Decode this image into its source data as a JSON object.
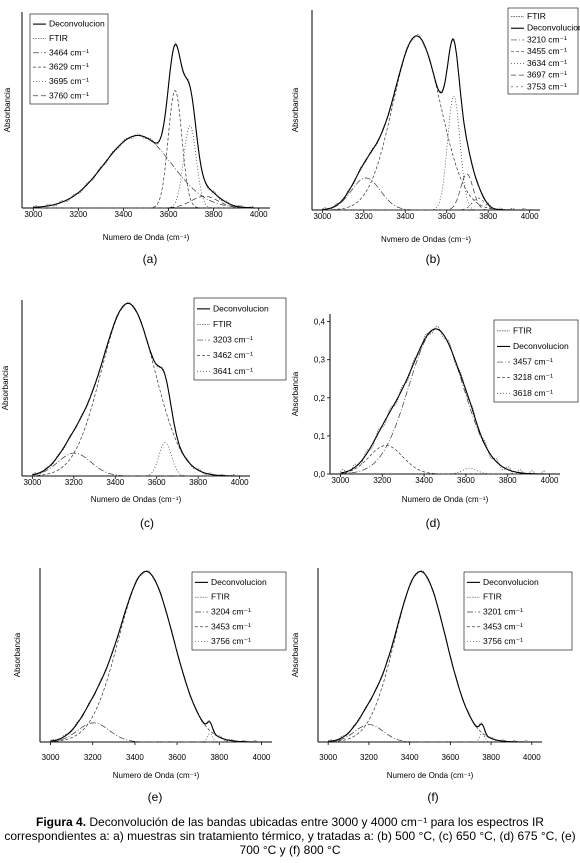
{
  "panels": [
    {
      "id": "a",
      "label": "(a)",
      "xlabel": "Numero de Onda (cm⁻¹)",
      "ylabel": "Absorbancia",
      "xticks": [
        "3000",
        "3200",
        "3400",
        "3600",
        "3800",
        "4000"
      ],
      "yticks": [],
      "legend": [
        "Deconvolucion",
        "FTIR",
        "3464 cm⁻¹",
        "3629 cm⁻¹",
        "3695 cm⁻¹",
        "3760 cm⁻¹"
      ]
    },
    {
      "id": "b",
      "label": "(b)",
      "xlabel": "Nvmero de Ondas (cm⁻¹)",
      "ylabel": "Absorbancia",
      "xticks": [
        "3000",
        "3200",
        "3400",
        "3600",
        "3800",
        "4000"
      ],
      "yticks": [],
      "legend": [
        "FTIR",
        "Deconvolucion",
        "3210 cm⁻¹",
        "3455 cm⁻¹",
        "3634 cm⁻¹",
        "3697 cm⁻¹",
        "3753 cm⁻¹"
      ]
    },
    {
      "id": "c",
      "label": "(c)",
      "xlabel": "Numero de Ondas (cm⁻¹)",
      "ylabel": "Absorbancia",
      "xticks": [
        "3000",
        "3200",
        "3400",
        "3600",
        "3800",
        "4000"
      ],
      "yticks": [],
      "legend": [
        "Deconvolucion",
        "FTIR",
        "3203 cm⁻¹",
        "3462 cm⁻¹",
        "3641 cm⁻¹"
      ]
    },
    {
      "id": "d",
      "label": "(d)",
      "xlabel": "Numero de Onda (cm⁻¹)",
      "ylabel": "Absorbancia",
      "xticks": [
        "3000",
        "3200",
        "3400",
        "3600",
        "3800",
        "4000"
      ],
      "yticks": [
        "0,0",
        "0,1",
        "0,2",
        "0,3",
        "0,4"
      ],
      "legend": [
        "FTIR",
        "Deconvolucion",
        "3457 cm⁻¹",
        "3218 cm⁻¹",
        "3618 cm⁻¹"
      ]
    },
    {
      "id": "e",
      "label": "(e)",
      "xlabel": "Numero de Onda (cm⁻¹)",
      "ylabel": "Absorbancia",
      "xticks": [
        "3000",
        "3200",
        "3400",
        "3600",
        "3800",
        "4000"
      ],
      "yticks": [],
      "legend": [
        "Deconvolucion",
        "FTIR",
        "3204 cm⁻¹",
        "3453 cm⁻¹",
        "3756 cm⁻¹"
      ]
    },
    {
      "id": "f",
      "label": "(f)",
      "xlabel": "Numero de Onda (cm⁻¹)",
      "ylabel": "Absorbancia",
      "xticks": [
        "3000",
        "3200",
        "3400",
        "3600",
        "3800",
        "4000"
      ],
      "yticks": [],
      "legend": [
        "Deconvolucion",
        "FTIR",
        "3201 cm⁻¹",
        "3453 cm⁻¹",
        "3756 cm⁻¹"
      ]
    }
  ],
  "caption": {
    "bold": "Figura 4.",
    "text": " Deconvolución de las bandas ubicadas entre 3000 y 4000 cm⁻¹ para los espectros IR correspondientes a: a) muestras sin tratamiento térmico, y tratadas a: (b) 500 °C, (c) 650 °C, (d) 675 °C, (e) 700 °C y (f) 800 °C"
  },
  "chart_data": [
    {
      "type": "line",
      "panel": "a",
      "xlabel": "Numero de Onda (cm⁻¹)",
      "ylabel": "Absorbancia",
      "xlim": [
        2950,
        4050
      ],
      "ylim": [
        0,
        1.0
      ],
      "components": [
        {
          "name": "3464 cm⁻¹",
          "center": 3464,
          "height": 0.37,
          "width": 150
        },
        {
          "name": "3629 cm⁻¹",
          "center": 3629,
          "height": 0.6,
          "width": 30
        },
        {
          "name": "3695 cm⁻¹",
          "center": 3695,
          "height": 0.42,
          "width": 28
        },
        {
          "name": "3760 cm⁻¹",
          "center": 3760,
          "height": 0.06,
          "width": 60
        }
      ],
      "series": [
        {
          "name": "Deconvolucion"
        },
        {
          "name": "FTIR"
        }
      ]
    },
    {
      "type": "line",
      "panel": "b",
      "xlabel": "Nvmero de Ondas (cm⁻¹)",
      "ylabel": "Absorbancia",
      "xlim": [
        2950,
        4050
      ],
      "ylim": [
        0,
        1.0
      ],
      "components": [
        {
          "name": "3210 cm⁻¹",
          "center": 3210,
          "height": 0.16,
          "width": 70
        },
        {
          "name": "3455 cm⁻¹",
          "center": 3455,
          "height": 0.87,
          "width": 115
        },
        {
          "name": "3634 cm⁻¹",
          "center": 3634,
          "height": 0.57,
          "width": 30
        },
        {
          "name": "3697 cm⁻¹",
          "center": 3697,
          "height": 0.18,
          "width": 30
        },
        {
          "name": "3753 cm⁻¹",
          "center": 3753,
          "height": 0.06,
          "width": 30
        }
      ],
      "series": [
        {
          "name": "FTIR"
        },
        {
          "name": "Deconvolucion"
        }
      ]
    },
    {
      "type": "line",
      "panel": "c",
      "xlabel": "Numero de Ondas (cm⁻¹)",
      "ylabel": "Absorbancia",
      "xlim": [
        2950,
        4050
      ],
      "ylim": [
        0,
        1.0
      ],
      "components": [
        {
          "name": "3203 cm⁻¹",
          "center": 3203,
          "height": 0.13,
          "width": 80
        },
        {
          "name": "3462 cm⁻¹",
          "center": 3462,
          "height": 0.98,
          "width": 130
        },
        {
          "name": "3641 cm⁻¹",
          "center": 3641,
          "height": 0.19,
          "width": 30
        }
      ],
      "series": [
        {
          "name": "Deconvolucion"
        },
        {
          "name": "FTIR"
        }
      ]
    },
    {
      "type": "line",
      "panel": "d",
      "xlabel": "Numero de Onda (cm⁻¹)",
      "ylabel": "Absorbancia",
      "xlim": [
        2950,
        4050
      ],
      "ylim": [
        0,
        0.42
      ],
      "components": [
        {
          "name": "3457 cm⁻¹",
          "center": 3457,
          "height": 0.38,
          "width": 130
        },
        {
          "name": "3218 cm⁻¹",
          "center": 3218,
          "height": 0.075,
          "width": 80
        },
        {
          "name": "3618 cm⁻¹",
          "center": 3618,
          "height": 0.015,
          "width": 35
        }
      ],
      "series": [
        {
          "name": "FTIR"
        },
        {
          "name": "Deconvolucion"
        }
      ]
    },
    {
      "type": "line",
      "panel": "e",
      "xlabel": "Numero de Onda (cm⁻¹)",
      "ylabel": "Absorbancia",
      "xlim": [
        2950,
        4050
      ],
      "ylim": [
        0,
        1.0
      ],
      "components": [
        {
          "name": "3204 cm⁻¹",
          "center": 3204,
          "height": 0.11,
          "width": 75
        },
        {
          "name": "3453 cm⁻¹",
          "center": 3453,
          "height": 0.98,
          "width": 130
        },
        {
          "name": "3756 cm⁻¹",
          "center": 3756,
          "height": 0.05,
          "width": 12
        }
      ],
      "series": [
        {
          "name": "Deconvolucion"
        },
        {
          "name": "FTIR"
        }
      ]
    },
    {
      "type": "line",
      "panel": "f",
      "xlabel": "Numero de Onda (cm⁻¹)",
      "ylabel": "Absorbancia",
      "xlim": [
        2950,
        4050
      ],
      "ylim": [
        0,
        1.0
      ],
      "components": [
        {
          "name": "3201 cm⁻¹",
          "center": 3201,
          "height": 0.1,
          "width": 70
        },
        {
          "name": "3453 cm⁻¹",
          "center": 3453,
          "height": 0.98,
          "width": 125
        },
        {
          "name": "3756 cm⁻¹",
          "center": 3756,
          "height": 0.05,
          "width": 12
        }
      ],
      "series": [
        {
          "name": "Deconvolucion"
        },
        {
          "name": "FTIR"
        }
      ]
    }
  ]
}
